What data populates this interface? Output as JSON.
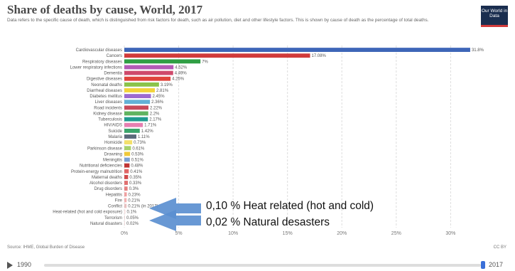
{
  "header": {
    "title": "Share of deaths by cause, World, 2017",
    "subtitle": "Data refers to the specific cause of death, which is distinguished from risk factors for death, such as air pollution, diet and other lifestyle factors. This is shown by cause of death as the percentage of total deaths.",
    "logo_text": "Our World in Data"
  },
  "chart_data": {
    "type": "bar",
    "orientation": "horizontal",
    "title": "Share of deaths by cause, World, 2017",
    "xlim": [
      0,
      32
    ],
    "x_ticks": [
      "0%",
      "5%",
      "10%",
      "15%",
      "20%",
      "25%",
      "30%"
    ],
    "grid": true,
    "categories": [
      "Cardiovascular diseases",
      "Cancers",
      "Respiratory diseases",
      "Lower respiratory infections",
      "Dementia",
      "Digestive diseases",
      "Neonatal deaths",
      "Diarrheal diseases",
      "Diabetes mellitus",
      "Liver diseases",
      "Road incidents",
      "Kidney disease",
      "Tuberculosis",
      "HIV/AIDS",
      "Suicide",
      "Malaria",
      "Homicide",
      "Parkinson disease",
      "Drowning",
      "Meningitis",
      "Nutritional deficiencies",
      "Protein-energy malnutrition",
      "Maternal deaths",
      "Alcohol disorders",
      "Drug disorders",
      "Hepatitis",
      "Fire",
      "Conflict",
      "Heat-related (hot and cold exposure)",
      "Terrorism",
      "Natural disasters"
    ],
    "values": [
      31.8,
      17.08,
      7,
      4.52,
      4.49,
      4.25,
      3.19,
      2.81,
      2.45,
      2.36,
      2.22,
      2.2,
      2.17,
      1.71,
      1.42,
      1.11,
      0.73,
      0.61,
      0.53,
      0.51,
      0.48,
      0.41,
      0.35,
      0.33,
      0.3,
      0.23,
      0.21,
      0.21,
      0.1,
      0.05,
      0.02
    ],
    "value_labels": [
      "31.8%",
      "17.08%",
      "7%",
      "4.52%",
      "4.49%",
      "4.25%",
      "3.19%",
      "2.81%",
      "2.45%",
      "2.36%",
      "2.22%",
      "2.2%",
      "2.17%",
      "1.71%",
      "1.42%",
      "1.11%",
      "0.73%",
      "0.61%",
      "0.53%",
      "0.51%",
      "0.48%",
      "0.41%",
      "0.35%",
      "0.33%",
      "0.3%",
      "0.23%",
      "0.21%",
      "0.21% (in 2017)",
      "0.1%",
      "0.05%",
      "0.02%"
    ],
    "colors": [
      "#3e66b8",
      "#d13b3b",
      "#2f9e44",
      "#b35ab6",
      "#cf4a6b",
      "#e0443c",
      "#8bc34a",
      "#f2d33a",
      "#9c6ad0",
      "#63b1d6",
      "#c64a5a",
      "#5fb35f",
      "#1f9b8f",
      "#e67fb1",
      "#3aa56a",
      "#5a6a7a",
      "#f3e06a",
      "#a7d16b",
      "#f0c93a",
      "#7aa0d4",
      "#c03434",
      "#e06666",
      "#d14a4a",
      "#e07070",
      "#e58080",
      "#f0a0a0",
      "#f2b0b0",
      "#e8c0c0",
      "#f4dede",
      "#e6d2d2",
      "#eedada"
    ]
  },
  "callouts": {
    "heat": "0,10 % Heat related (hot and cold)",
    "natural": "0,02 % Natural desasters"
  },
  "footer": {
    "source": "Source: IHME, Global Burden of Disease",
    "license": "CC BY"
  },
  "timeline": {
    "start_year": "1990",
    "end_year": "2017"
  }
}
